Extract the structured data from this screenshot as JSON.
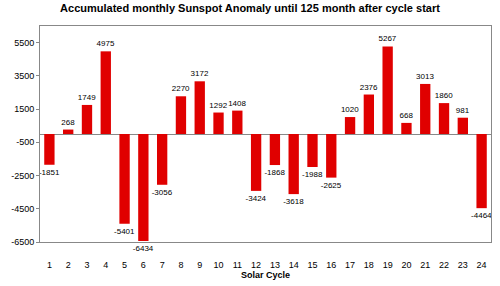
{
  "chart_data": {
    "type": "bar",
    "title": "Accumulated monthly Sunspot Anomaly until 125 month after cycle start",
    "x_label": "Solar Cycle",
    "categories": [
      "1",
      "2",
      "3",
      "4",
      "5",
      "6",
      "7",
      "8",
      "9",
      "10",
      "11",
      "12",
      "13",
      "14",
      "15",
      "16",
      "17",
      "18",
      "19",
      "20",
      "21",
      "22",
      "23",
      "24"
    ],
    "values": [
      -1851,
      268,
      1749,
      4975,
      -5401,
      -6434,
      -3056,
      2270,
      3172,
      1292,
      1408,
      -3424,
      -1868,
      -3618,
      -1988,
      -2625,
      1020,
      2376,
      5267,
      668,
      3013,
      1860,
      981,
      -4464
    ],
    "color": "#e00000",
    "ylim": [
      -6500,
      6500
    ],
    "yticks": [
      -6500,
      -4500,
      -2500,
      -500,
      1500,
      3500,
      5500
    ],
    "grid": false,
    "data_labels": true
  }
}
